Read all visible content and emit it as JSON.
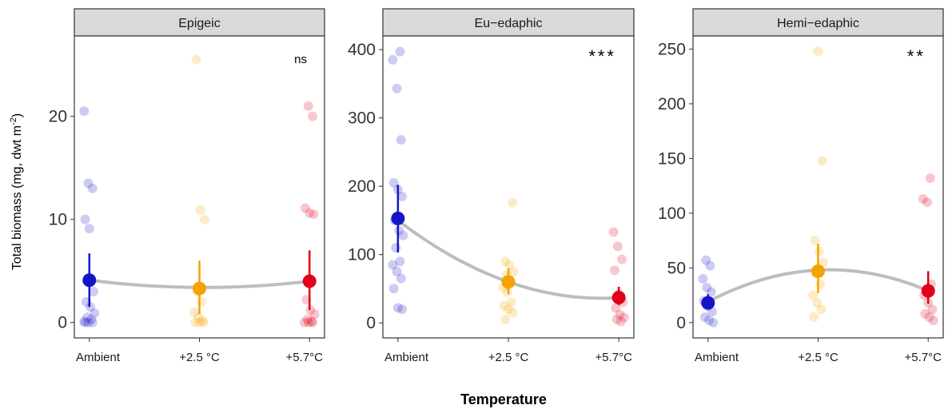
{
  "figure": {
    "ylabel": "Total biomass (mg, dwt m",
    "ylabel_sup": "-2",
    "ylabel_close": ")",
    "xlabel": "Temperature"
  },
  "colors": {
    "ambient": "#1515c8",
    "plus25": "#f5a300",
    "plus57": "#e0001a",
    "trend": "#bdbdbd",
    "strip": "#d9d9d9"
  },
  "chart_data": [
    {
      "type": "scatter",
      "panel": "Epigeic",
      "significance": "ns",
      "categories": [
        "Ambient",
        "+2.5 °C",
        "+5.7°C"
      ],
      "ylim": [
        -1.5,
        27.8
      ],
      "yticks": [
        0,
        10,
        20
      ],
      "means": [
        4.1,
        3.3,
        4.0
      ],
      "error_bars": [
        [
          1.5,
          6.7
        ],
        [
          0.8,
          6.0
        ],
        [
          1.2,
          7.0
        ]
      ],
      "trend": [
        4.1,
        3.4,
        4.0
      ],
      "points": [
        [
          20.5,
          13.5,
          13.0,
          10.0,
          9.1,
          3.0,
          2.0,
          1.5,
          0.9,
          0.5,
          0.3,
          0.1,
          0,
          0,
          0
        ],
        [
          25.5,
          10.9,
          10.0,
          3.0,
          2.0,
          1.0,
          0.5,
          0.2,
          0,
          0,
          0
        ],
        [
          21.0,
          20.0,
          11.1,
          10.6,
          10.5,
          2.2,
          1.2,
          0.8,
          0.3,
          0.1,
          0,
          0,
          0
        ]
      ]
    },
    {
      "type": "scatter",
      "panel": "Eu−edaphic",
      "significance": "***",
      "categories": [
        "Ambient",
        "+2.5 °C",
        "+5.7°C"
      ],
      "ylim": [
        -22,
        420
      ],
      "yticks": [
        0,
        100,
        200,
        300,
        400
      ],
      "means": [
        153,
        60,
        37
      ],
      "error_bars": [
        [
          103,
          202
        ],
        [
          42,
          80
        ],
        [
          26,
          53
        ]
      ],
      "trend": [
        150,
        60,
        37
      ],
      "points": [
        [
          397,
          385,
          343,
          268,
          205,
          195,
          185,
          150,
          135,
          128,
          110,
          90,
          85,
          75,
          65,
          50,
          22,
          20
        ],
        [
          176,
          90,
          85,
          75,
          70,
          60,
          52,
          45,
          30,
          25,
          20,
          15,
          5
        ],
        [
          133,
          112,
          93,
          77,
          42,
          30,
          22,
          12,
          8,
          5,
          2
        ]
      ]
    },
    {
      "type": "scatter",
      "panel": "Hemi−edaphic",
      "significance": "**",
      "categories": [
        "Ambient",
        "+2.5 °C",
        "+5.7°C"
      ],
      "ylim": [
        -14,
        262
      ],
      "yticks": [
        0,
        50,
        100,
        150,
        200,
        250
      ],
      "means": [
        18,
        47,
        29
      ],
      "error_bars": [
        [
          12,
          26
        ],
        [
          27,
          72
        ],
        [
          17,
          47
        ]
      ],
      "trend": [
        19,
        48,
        29
      ],
      "points": [
        [
          57,
          52,
          40,
          32,
          28,
          20,
          15,
          10,
          5,
          2,
          0
        ],
        [
          248,
          148,
          75,
          65,
          55,
          45,
          35,
          25,
          18,
          12,
          5
        ],
        [
          132,
          113,
          110,
          35,
          25,
          18,
          12,
          8,
          5,
          2
        ]
      ]
    }
  ]
}
